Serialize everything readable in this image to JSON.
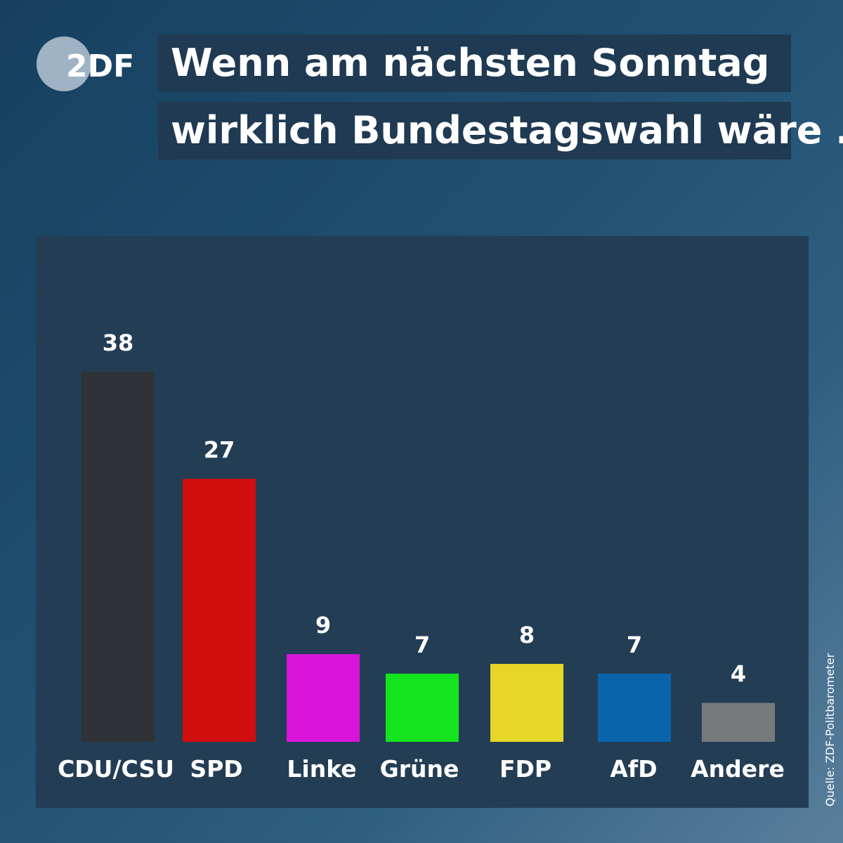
{
  "logo": {
    "text": "2DF",
    "accent": "#9fb3c4"
  },
  "title": {
    "line1": "Wenn am nächsten Sonntag",
    "line2": "wirklich Bundestagswahl wäre ..."
  },
  "source": "Quelle: ZDF-Politbarometer",
  "chart_data": {
    "type": "bar",
    "categories": [
      "CDU/CSU",
      "SPD",
      "Linke",
      "Grüne",
      "FDP",
      "AfD",
      "Andere"
    ],
    "values": [
      38,
      27,
      9,
      7,
      8,
      7,
      4
    ],
    "colors": [
      "#2f3236",
      "#d10e0e",
      "#d814da",
      "#14e41e",
      "#e6d627",
      "#0a64ab",
      "#767a7d"
    ],
    "ylim": [
      0,
      38
    ],
    "grid": false,
    "legend": "none"
  }
}
